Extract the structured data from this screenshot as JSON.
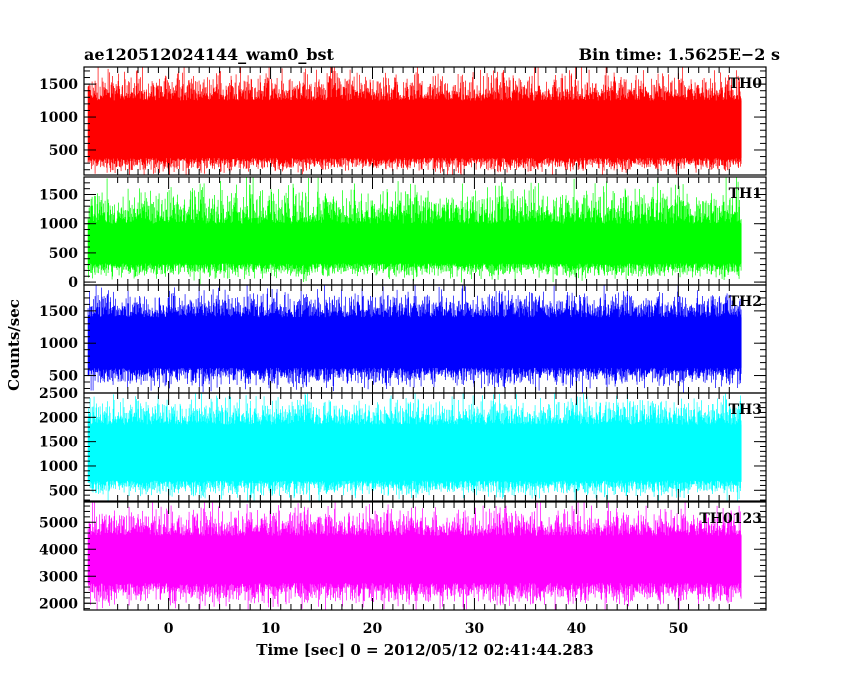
{
  "chart_data": {
    "type": "line",
    "title_left": "ae120512024144_wam0_bst",
    "title_right": "Bin time: 1.5625E−2 s",
    "xlabel": "Time [sec] 0 = 2012/05/12 02:41:44.283",
    "ylabel": "Counts/sec",
    "xlim": [
      -8.3,
      58.6
    ],
    "x_data_range": [
      -7.9,
      56.2
    ],
    "x_ticks": [
      0,
      10,
      20,
      30,
      40,
      50
    ],
    "panels": [
      {
        "name": "TH0",
        "color": "#ff0000",
        "ylim": [
          120,
          1760
        ],
        "yticks": [
          500,
          1000,
          1500
        ],
        "ytick_labels": [
          "500",
          "1000",
          "1500"
        ],
        "band": {
          "mean": 820,
          "inner_low": 380,
          "inner_high": 1250,
          "outer_low": 130,
          "outer_high": 1750
        }
      },
      {
        "name": "TH1",
        "color": "#00ff00",
        "ylim": [
          -50,
          1800
        ],
        "yticks": [
          0,
          500,
          1000,
          1500
        ],
        "ytick_labels": [
          "0",
          "500",
          "1000",
          "1500"
        ],
        "band": {
          "mean": 650,
          "inner_low": 320,
          "inner_high": 1000,
          "outer_low": 40,
          "outer_high": 1700
        }
      },
      {
        "name": "TH2",
        "color": "#0000ff",
        "ylim": [
          230,
          1900
        ],
        "yticks": [
          500,
          1000,
          1500
        ],
        "ytick_labels": [
          "500",
          "1000",
          "1500"
        ],
        "band": {
          "mean": 1000,
          "inner_low": 620,
          "inner_high": 1400,
          "outer_low": 280,
          "outer_high": 1870
        }
      },
      {
        "name": "TH3",
        "color": "#00ffff",
        "ylim": [
          280,
          2500
        ],
        "yticks": [
          500,
          1000,
          1500,
          2000,
          2500
        ],
        "ytick_labels": [
          "500",
          "1000",
          "1500",
          "2000",
          "2500"
        ],
        "band": {
          "mean": 1200,
          "inner_low": 700,
          "inner_high": 1850,
          "outer_low": 330,
          "outer_high": 2480
        }
      },
      {
        "name": "TH0123",
        "color": "#ff00ff",
        "ylim": [
          1750,
          5750
        ],
        "yticks": [
          2000,
          3000,
          4000,
          5000
        ],
        "ytick_labels": [
          "2000",
          "3000",
          "4000",
          "5000"
        ],
        "band": {
          "mean": 3650,
          "inner_low": 2750,
          "inner_high": 4500,
          "outer_low": 1800,
          "outer_high": 5700
        }
      }
    ]
  }
}
